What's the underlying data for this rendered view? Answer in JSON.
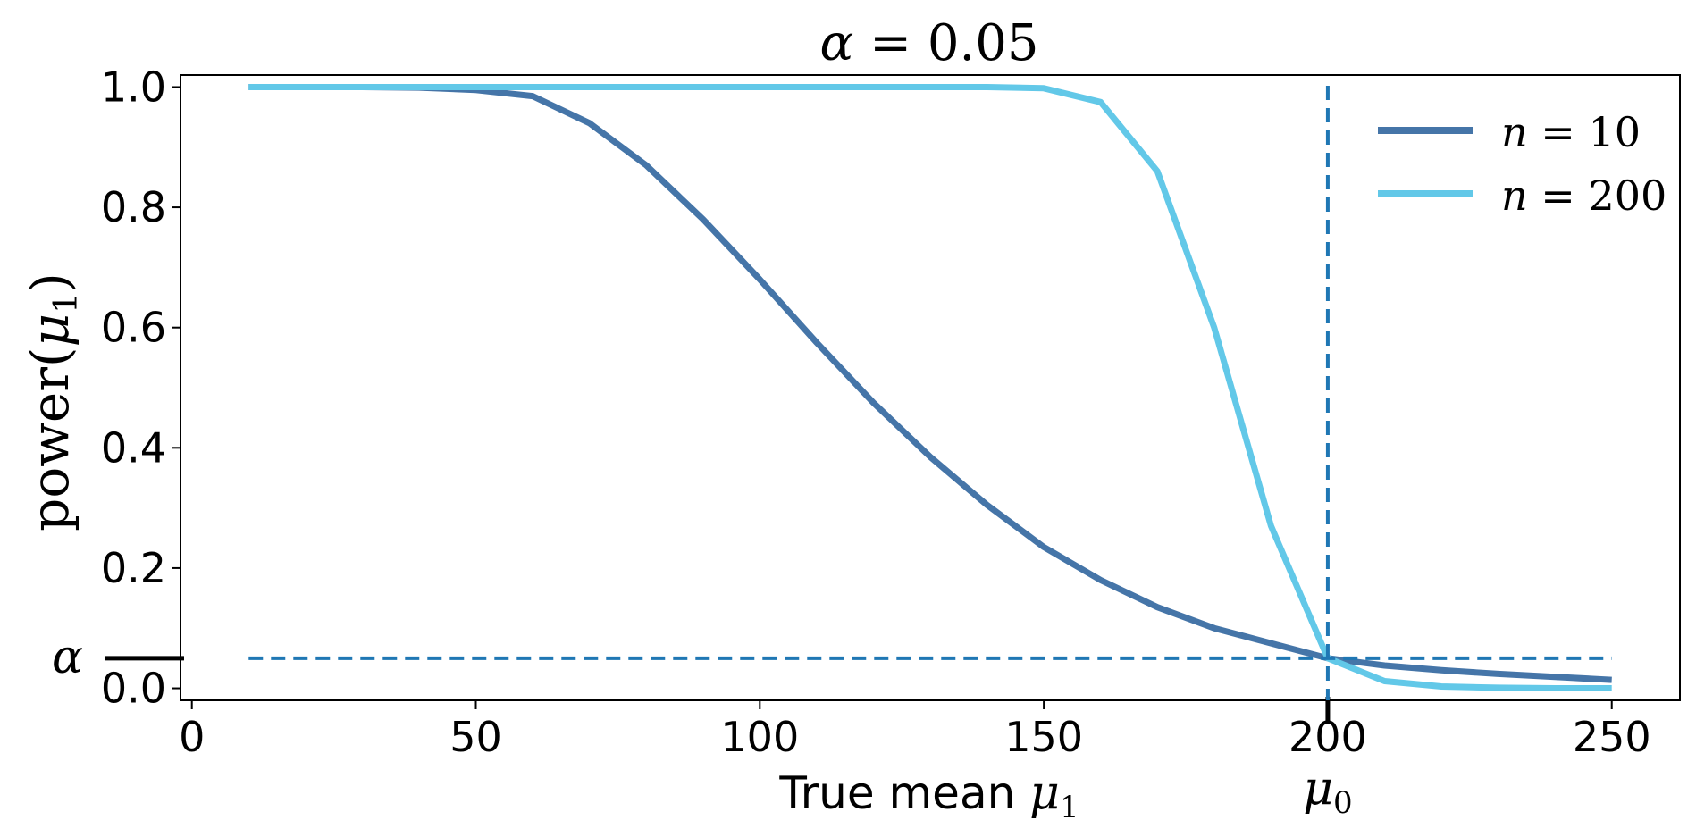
{
  "chart_data": {
    "type": "line",
    "title": "α = 0.05",
    "title_parts": {
      "symbol": "α",
      "eq": " = ",
      "value": "0.05"
    },
    "xlabel": "True mean μ1",
    "xlabel_parts": {
      "text": "True mean ",
      "symbol": "μ",
      "sub": "1"
    },
    "ylabel": "power(μ1)",
    "ylabel_parts": {
      "fn": "power(",
      "symbol": "μ",
      "sub": "1",
      "close": ")"
    },
    "xlim": [
      -2,
      262
    ],
    "ylim": [
      -0.02,
      1.02
    ],
    "x_ticks": [
      0,
      50,
      100,
      150,
      200,
      250
    ],
    "x_tick_labels": [
      "0",
      "50",
      "100",
      "150",
      "200",
      "250"
    ],
    "y_ticks": [
      0.0,
      0.2,
      0.4,
      0.6,
      0.8,
      1.0
    ],
    "y_tick_labels": [
      "0.0",
      "0.2",
      "0.4",
      "0.6",
      "0.8",
      "1.0"
    ],
    "extra_x_tick": {
      "value": 200,
      "label_symbol": "μ",
      "label_sub": "0"
    },
    "extra_y_tick": {
      "value": 0.05,
      "label": "α"
    },
    "mu0": 200,
    "alpha": 0.05,
    "x": [
      10,
      20,
      30,
      40,
      50,
      60,
      70,
      80,
      90,
      100,
      110,
      120,
      130,
      140,
      150,
      160,
      170,
      180,
      190,
      200,
      210,
      220,
      230,
      240,
      250
    ],
    "series": [
      {
        "name": "n = 10",
        "name_parts": {
          "symbol": "n",
          "eq": " = ",
          "value": "10"
        },
        "color": "#4575a8",
        "values": [
          1.0,
          1.0,
          1.0,
          0.999,
          0.995,
          0.985,
          0.94,
          0.87,
          0.78,
          0.68,
          0.575,
          0.475,
          0.385,
          0.305,
          0.235,
          0.18,
          0.135,
          0.1,
          0.075,
          0.05,
          0.038,
          0.03,
          0.024,
          0.019,
          0.014
        ]
      },
      {
        "name": "n = 200",
        "name_parts": {
          "symbol": "n",
          "eq": " = ",
          "value": "200"
        },
        "color": "#62c8e8",
        "values": [
          1.0,
          1.0,
          1.0,
          1.0,
          1.0,
          1.0,
          1.0,
          1.0,
          1.0,
          1.0,
          1.0,
          1.0,
          1.0,
          1.0,
          0.998,
          0.975,
          0.86,
          0.6,
          0.27,
          0.05,
          0.012,
          0.003,
          0.001,
          0.0,
          0.0
        ]
      }
    ],
    "reference_lines": [
      {
        "orientation": "vertical",
        "value": 200,
        "style": "dashed",
        "color": "#1f77b4"
      },
      {
        "orientation": "horizontal",
        "value": 0.05,
        "from": 10,
        "to": 250,
        "style": "dashed",
        "color": "#1f77b4"
      }
    ],
    "legend_position": "top-right",
    "grid": false
  }
}
